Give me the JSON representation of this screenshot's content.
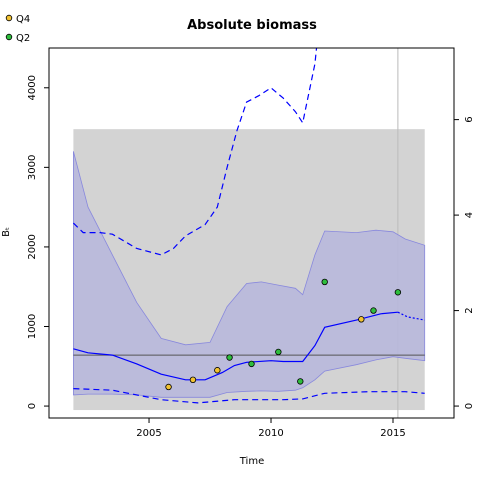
{
  "chart_data": {
    "type": "line",
    "title": "Absolute biomass",
    "xlabel": "Time",
    "ylabel": "Bₜ",
    "xlim": [
      2000.9,
      2017.5
    ],
    "ylim": [
      -150,
      4500
    ],
    "y2lim": [
      -0.25,
      7.5
    ],
    "x_ticks": [
      2005,
      2010,
      2015
    ],
    "x_tick_labels": [
      "2005",
      "2010",
      "2015"
    ],
    "y_ticks": [
      0,
      1000,
      2000,
      3000,
      4000
    ],
    "y_tick_labels": [
      "0",
      "1000",
      "2000",
      "3000",
      "4000"
    ],
    "y2_ticks": [
      0,
      2,
      4,
      6
    ],
    "y2_tick_labels": [
      "0",
      "2",
      "4",
      "6"
    ],
    "legend": {
      "placement": "top-left",
      "entries": [
        {
          "label": "Q4",
          "color": "#f2c232"
        },
        {
          "label": "Q2",
          "color": "#2ebd3c"
        }
      ]
    },
    "grid": false,
    "colors": {
      "median": "#0000ff",
      "ci_fill": "#b8b8dc",
      "ci_edge": "#8888dd",
      "reference_box": "#d3d3d3",
      "reference_line": "#555555",
      "vline": "#bbbbbb"
    },
    "reference_box": {
      "x": [
        2001.9,
        2016.3
      ],
      "y": [
        -50,
        3480
      ]
    },
    "reference_line_y": 640,
    "vline_x": 2015.2,
    "ci_band": {
      "x": [
        2001.9,
        2002.5,
        2003.5,
        2004.5,
        2005.5,
        2006.5,
        2007.5,
        2008.2,
        2009.0,
        2009.6,
        2010.3,
        2011.0,
        2011.3,
        2011.8,
        2012.2,
        2013.5,
        2014.3,
        2015.0,
        2015.5,
        2016.3
      ],
      "upper": [
        3200,
        2500,
        1900,
        1300,
        850,
        770,
        800,
        1250,
        1540,
        1560,
        1520,
        1480,
        1400,
        1900,
        2200,
        2180,
        2210,
        2190,
        2100,
        2020
      ],
      "lower": [
        140,
        150,
        150,
        140,
        110,
        110,
        110,
        170,
        185,
        190,
        185,
        200,
        230,
        330,
        440,
        520,
        580,
        620,
        600,
        570
      ]
    },
    "series": [
      {
        "style": "solid",
        "x": [
          2001.9,
          2002.5,
          2003.5,
          2004.5,
          2005.5,
          2006.5,
          2007.3,
          2008.0,
          2008.5,
          2009.0,
          2010.0,
          2010.5,
          2011.3,
          2011.8,
          2012.2,
          2013.5,
          2014.5,
          2015.2
        ],
        "y": [
          720,
          670,
          640,
          530,
          400,
          330,
          330,
          420,
          510,
          550,
          570,
          560,
          560,
          760,
          990,
          1080,
          1160,
          1180
        ]
      },
      {
        "style": "dotted",
        "x": [
          2015.2,
          2015.6,
          2016.3
        ],
        "y": [
          1180,
          1120,
          1080
        ]
      },
      {
        "style": "dashed",
        "x": [
          2001.9,
          2002.3,
          2003.0,
          2003.5,
          2004.5,
          2005.5,
          2006.0,
          2006.5,
          2007.3,
          2007.8,
          2008.2,
          2008.6,
          2009.0,
          2009.5,
          2010.0,
          2010.5,
          2011.0,
          2011.3,
          2011.8,
          2012.0
        ],
        "y": [
          2300,
          2180,
          2180,
          2160,
          1980,
          1900,
          1980,
          2140,
          2280,
          2500,
          3000,
          3460,
          3820,
          3900,
          4000,
          3870,
          3700,
          3560,
          4300,
          4900
        ]
      },
      {
        "style": "dashed",
        "x": [
          2001.9,
          2003.5,
          2005.5,
          2007.0,
          2008.5,
          2010.5,
          2011.3,
          2012.2,
          2014.0,
          2015.5,
          2016.3
        ],
        "y": [
          220,
          200,
          80,
          40,
          80,
          80,
          90,
          160,
          180,
          180,
          160
        ]
      }
    ],
    "observations": [
      {
        "name": "Q4",
        "color": "#f2c232",
        "x": [
          2005.8,
          2006.8,
          2007.8,
          2013.7
        ],
        "y": [
          240,
          330,
          450,
          1090
        ]
      },
      {
        "name": "Q2",
        "color": "#2ebd3c",
        "x": [
          2008.3,
          2009.2,
          2010.3,
          2011.2,
          2012.2,
          2014.2,
          2015.2
        ],
        "y": [
          610,
          530,
          680,
          310,
          1560,
          1200,
          1430
        ]
      }
    ]
  }
}
